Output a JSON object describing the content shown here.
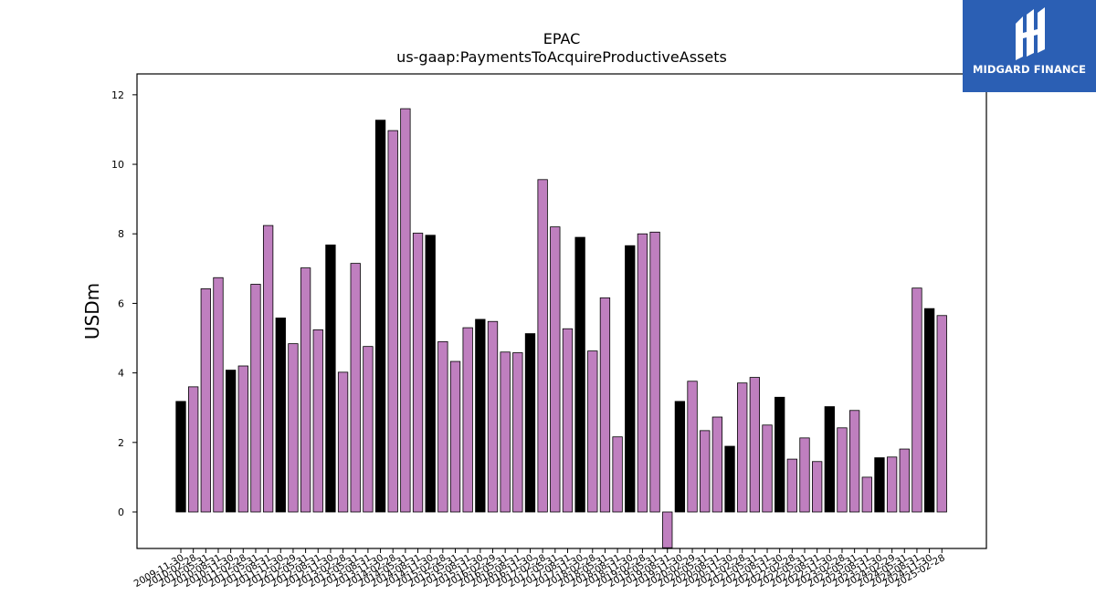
{
  "chart_data": {
    "type": "bar",
    "title": "EPAC",
    "subtitle": "us-gaap:PaymentsToAcquireProductiveAssets",
    "xlabel": "",
    "ylabel": "USDm",
    "ylim": [
      -1.05,
      12.6
    ],
    "yticks": [
      0,
      2,
      4,
      6,
      8,
      10,
      12
    ],
    "grid": false,
    "categories": [
      "2009-11-30",
      "2010-02-28",
      "2010-05-31",
      "2010-08-31",
      "2010-11-30",
      "2011-02-28",
      "2011-05-31",
      "2011-08-31",
      "2011-11-30",
      "2012-02-29",
      "2012-05-31",
      "2012-08-31",
      "2012-11-30",
      "2013-02-28",
      "2013-05-31",
      "2013-08-31",
      "2013-11-30",
      "2014-02-28",
      "2014-05-31",
      "2014-08-31",
      "2014-11-30",
      "2015-02-28",
      "2015-05-31",
      "2015-08-31",
      "2015-11-30",
      "2016-02-29",
      "2016-05-31",
      "2016-08-31",
      "2016-11-30",
      "2017-02-28",
      "2017-05-31",
      "2017-08-31",
      "2017-11-30",
      "2018-02-28",
      "2018-05-31",
      "2018-08-31",
      "2018-11-30",
      "2019-02-28",
      "2019-05-31",
      "2019-08-31",
      "2019-11-30",
      "2020-02-29",
      "2020-05-31",
      "2020-08-31",
      "2020-11-30",
      "2021-02-28",
      "2021-05-31",
      "2021-08-31",
      "2021-11-30",
      "2022-02-28",
      "2022-05-31",
      "2022-08-31",
      "2022-11-30",
      "2023-02-28",
      "2023-05-31",
      "2023-08-31",
      "2023-11-30",
      "2024-02-29",
      "2024-05-31",
      "2024-08-31",
      "2024-11-30",
      "2025-02-28"
    ],
    "values": [
      3.18,
      3.6,
      6.42,
      6.74,
      4.08,
      4.2,
      6.55,
      8.24,
      5.58,
      4.84,
      7.02,
      5.24,
      7.68,
      4.02,
      7.15,
      4.76,
      11.27,
      10.97,
      11.6,
      8.02,
      7.96,
      4.9,
      4.33,
      5.3,
      5.54,
      5.48,
      4.6,
      4.58,
      5.13,
      9.56,
      8.2,
      5.27,
      7.9,
      4.63,
      6.16,
      2.16,
      7.66,
      8.0,
      8.05,
      -1.03,
      3.18,
      3.76,
      2.34,
      2.73,
      1.89,
      3.71,
      3.87,
      2.5,
      3.3,
      1.52,
      2.13,
      1.45,
      3.03,
      2.42,
      2.92,
      1.0,
      1.56,
      1.58,
      1.81,
      6.44,
      5.85,
      5.65
    ],
    "highlight_every": 4,
    "colors": {
      "highlight": "#000000",
      "regular": "#bf7fbf",
      "edge": "#000000"
    }
  },
  "logo": {
    "text": "MIDGARD FINANCE",
    "icon": "midgard-logo-icon",
    "background": "#2b5fb4"
  }
}
